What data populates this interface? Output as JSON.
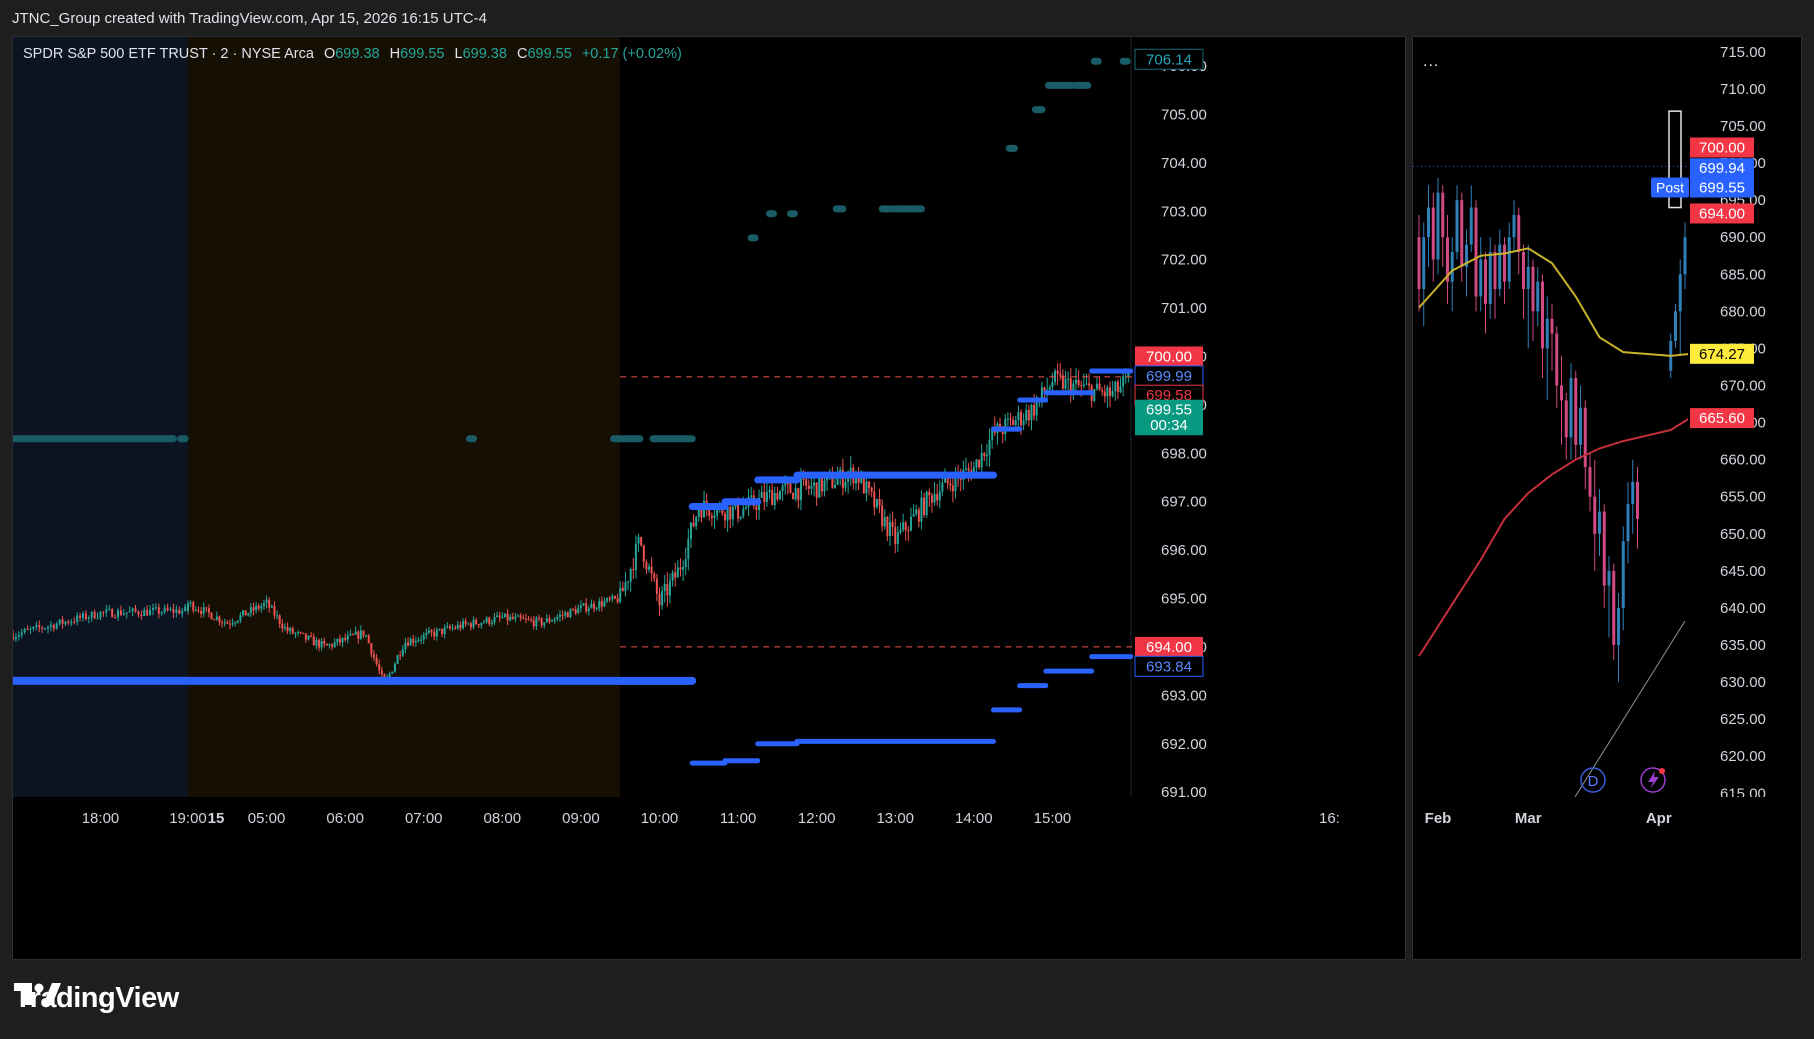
{
  "header": {
    "text": "JTNC_Group created with TradingView.com, Apr 15, 2026 16:15 UTC-4"
  },
  "brand": {
    "name": "TradingView"
  },
  "legend": {
    "symbol": "SPDR S&P 500 ETF TRUST · 2 · NYSE Arca",
    "o_label": "O",
    "o": "699.38",
    "h_label": "H",
    "h": "699.55",
    "l_label": "L",
    "l": "699.38",
    "c_label": "C",
    "c": "699.55",
    "change": "+0.17 (+0.02%)"
  },
  "right_panel": {
    "menu": "...",
    "badge": "Post",
    "icon_d": "D"
  },
  "colors": {
    "background": "#000000",
    "page": "#1e1e1e",
    "up": "#26a69a",
    "down": "#ef5350",
    "blue_level": "#2962ff",
    "teal_level": "#1a5c66",
    "ma_yellow": "#c8b22a",
    "ma_red": "#c62f3a"
  },
  "chart_data": [
    {
      "type": "candlestick",
      "title": "SPDR S&P 500 ETF TRUST · 2 · NYSE Arca",
      "interval": "2 minute",
      "x_ticks": [
        "18:00",
        "19:00",
        "15",
        "05:00",
        "06:00",
        "07:00",
        "08:00",
        "09:00",
        "10:00",
        "11:00",
        "12:00",
        "13:00",
        "14:00",
        "15:00",
        "16:"
      ],
      "y_ticks": [
        "691.00",
        "692.00",
        "693.00",
        "694.00",
        "695.00",
        "696.00",
        "697.00",
        "698.00",
        "699.00",
        "700.00",
        "701.00",
        "702.00",
        "703.00",
        "704.00",
        "705.00",
        "706.00"
      ],
      "ylim": [
        690.9,
        706.6
      ],
      "sessions": [
        {
          "name": "overnight",
          "from": "17:00",
          "to": "04:00",
          "color": "#0b1420"
        },
        {
          "name": "pre-market",
          "from": "04:00",
          "to": "09:30",
          "color": "#160f04"
        },
        {
          "name": "regular",
          "from": "09:30",
          "to": "16:00",
          "color": "#000000"
        }
      ],
      "close_path": [
        {
          "t": "17:00",
          "p": 694.25
        },
        {
          "t": "18:00",
          "p": 694.7
        },
        {
          "t": "19:00",
          "p": 694.75
        },
        {
          "t": "04:00",
          "p": 694.9
        },
        {
          "t": "04:30",
          "p": 694.5
        },
        {
          "t": "05:00",
          "p": 694.9
        },
        {
          "t": "05:15",
          "p": 694.35
        },
        {
          "t": "05:45",
          "p": 694.0
        },
        {
          "t": "06:15",
          "p": 694.3
        },
        {
          "t": "06:30",
          "p": 693.2
        },
        {
          "t": "06:45",
          "p": 694.1
        },
        {
          "t": "07:30",
          "p": 694.45
        },
        {
          "t": "08:00",
          "p": 694.6
        },
        {
          "t": "08:30",
          "p": 694.5
        },
        {
          "t": "09:00",
          "p": 694.8
        },
        {
          "t": "09:30",
          "p": 695.0
        },
        {
          "t": "09:45",
          "p": 696.2
        },
        {
          "t": "10:00",
          "p": 694.9
        },
        {
          "t": "10:15",
          "p": 695.6
        },
        {
          "t": "10:30",
          "p": 696.9
        },
        {
          "t": "11:00",
          "p": 696.8
        },
        {
          "t": "11:30",
          "p": 697.2
        },
        {
          "t": "12:00",
          "p": 697.3
        },
        {
          "t": "12:30",
          "p": 697.6
        },
        {
          "t": "13:00",
          "p": 696.2
        },
        {
          "t": "13:30",
          "p": 697.2
        },
        {
          "t": "14:00",
          "p": 697.7
        },
        {
          "t": "14:15",
          "p": 698.4
        },
        {
          "t": "14:45",
          "p": 698.9
        },
        {
          "t": "15:00",
          "p": 699.5
        },
        {
          "t": "15:30",
          "p": 699.3
        },
        {
          "t": "15:45",
          "p": 699.2
        },
        {
          "t": "16:00",
          "p": 699.55
        }
      ],
      "blue_levels": [
        {
          "from": "17:00",
          "to": "10:25",
          "p": 693.3
        },
        {
          "from": "10:25",
          "to": "10:50",
          "p": 691.6
        },
        {
          "from": "10:50",
          "to": "11:15",
          "p": 691.65
        },
        {
          "from": "11:15",
          "to": "11:45",
          "p": 692.0
        },
        {
          "from": "11:45",
          "to": "14:15",
          "p": 692.05
        },
        {
          "from": "14:15",
          "to": "14:35",
          "p": 692.7
        },
        {
          "from": "14:35",
          "to": "14:55",
          "p": 693.2
        },
        {
          "from": "14:55",
          "to": "15:30",
          "p": 693.5
        },
        {
          "from": "15:30",
          "to": "16:00",
          "p": 693.8
        },
        {
          "from": "10:25",
          "to": "10:50",
          "p": 696.9
        },
        {
          "from": "10:50",
          "to": "11:15",
          "p": 697.0
        },
        {
          "from": "11:15",
          "to": "11:45",
          "p": 697.45
        },
        {
          "from": "11:45",
          "to": "14:15",
          "p": 697.55
        },
        {
          "from": "14:15",
          "to": "14:35",
          "p": 698.5
        },
        {
          "from": "14:35",
          "to": "14:55",
          "p": 699.1
        },
        {
          "from": "14:55",
          "to": "15:30",
          "p": 699.25
        },
        {
          "from": "15:30",
          "to": "16:00",
          "p": 699.7
        }
      ],
      "teal_levels": [
        {
          "from": "17:00",
          "to": "18:50",
          "p": 698.3
        },
        {
          "from": "18:55",
          "to": "18:58",
          "p": 698.3
        },
        {
          "from": "07:35",
          "to": "07:38",
          "p": 698.3
        },
        {
          "from": "09:25",
          "to": "09:45",
          "p": 698.3
        },
        {
          "from": "09:55",
          "to": "10:25",
          "p": 698.3
        },
        {
          "from": "11:10",
          "to": "11:13",
          "p": 702.45
        },
        {
          "from": "11:24",
          "to": "11:27",
          "p": 702.95
        },
        {
          "from": "11:40",
          "to": "11:43",
          "p": 702.95
        },
        {
          "from": "12:15",
          "to": "12:20",
          "p": 703.05
        },
        {
          "from": "12:50",
          "to": "12:55",
          "p": 703.05
        },
        {
          "from": "12:58",
          "to": "13:10",
          "p": 703.05
        },
        {
          "from": "13:11",
          "to": "13:20",
          "p": 703.05
        },
        {
          "from": "14:27",
          "to": "14:31",
          "p": 704.3
        },
        {
          "from": "14:47",
          "to": "14:52",
          "p": 705.1
        },
        {
          "from": "14:57",
          "to": "15:15",
          "p": 705.6
        },
        {
          "from": "15:18",
          "to": "15:27",
          "p": 705.6
        },
        {
          "from": "15:32",
          "to": "15:35",
          "p": 706.1
        },
        {
          "from": "15:54",
          "to": "15:57",
          "p": 706.1
        }
      ],
      "dashed_lines": [
        {
          "p": 699.58,
          "color": "#ef5350"
        },
        {
          "p": 694.0,
          "color": "#ef5350"
        }
      ],
      "price_labels": [
        {
          "text": "706.14",
          "p": 706.14,
          "style": "outline-teal"
        },
        {
          "text": "700.00",
          "p": 700.0,
          "style": "fill-red"
        },
        {
          "text": "699.99",
          "p": 699.6,
          "style": "outline-blue"
        },
        {
          "text": "699.58",
          "p": 699.2,
          "style": "outline-red"
        },
        {
          "text": "699.55",
          "p": 698.9,
          "style": "fill-green"
        },
        {
          "text": "00:34",
          "p": 698.58,
          "style": "fill-green"
        },
        {
          "text": "694.00",
          "p": 694.0,
          "style": "fill-red"
        },
        {
          "text": "693.84",
          "p": 693.6,
          "style": "outline-blue"
        }
      ]
    },
    {
      "type": "candlestick",
      "interval": "1 day",
      "x_ticks": [
        "Feb",
        "Mar",
        "Apr"
      ],
      "y_ticks": [
        "615.00",
        "620.00",
        "625.00",
        "630.00",
        "635.00",
        "640.00",
        "645.00",
        "650.00",
        "655.00",
        "660.00",
        "665.00",
        "670.00",
        "675.00",
        "680.00",
        "685.00",
        "690.00",
        "695.00",
        "700.00",
        "705.00",
        "710.00",
        "715.00"
      ],
      "ylim": [
        614.5,
        717
      ],
      "daily": [
        {
          "d": "Jan 27",
          "o": 690,
          "h": 693,
          "l": 680,
          "c": 683
        },
        {
          "d": "Jan 28",
          "o": 683,
          "h": 692,
          "l": 678,
          "c": 690
        },
        {
          "d": "Jan 29",
          "o": 690,
          "h": 697,
          "l": 686,
          "c": 694
        },
        {
          "d": "Jan 30",
          "o": 694,
          "h": 696,
          "l": 684,
          "c": 687
        },
        {
          "d": "Feb 02",
          "o": 687,
          "h": 698,
          "l": 685,
          "c": 696
        },
        {
          "d": "Feb 03",
          "o": 696,
          "h": 697,
          "l": 686,
          "c": 690
        },
        {
          "d": "Feb 04",
          "o": 690,
          "h": 693,
          "l": 681,
          "c": 684
        },
        {
          "d": "Feb 05",
          "o": 684,
          "h": 690,
          "l": 680,
          "c": 688
        },
        {
          "d": "Feb 06",
          "o": 688,
          "h": 697,
          "l": 687,
          "c": 695
        },
        {
          "d": "Feb 09",
          "o": 695,
          "h": 696,
          "l": 684,
          "c": 686
        },
        {
          "d": "Feb 10",
          "o": 686,
          "h": 691,
          "l": 682,
          "c": 689
        },
        {
          "d": "Feb 11",
          "o": 689,
          "h": 697,
          "l": 688,
          "c": 694
        },
        {
          "d": "Feb 12",
          "o": 694,
          "h": 695,
          "l": 680,
          "c": 682
        },
        {
          "d": "Feb 13",
          "o": 682,
          "h": 690,
          "l": 680,
          "c": 687
        },
        {
          "d": "Feb 17",
          "o": 687,
          "h": 688,
          "l": 677,
          "c": 681
        },
        {
          "d": "Feb 18",
          "o": 681,
          "h": 690,
          "l": 679,
          "c": 688
        },
        {
          "d": "Feb 19",
          "o": 688,
          "h": 689,
          "l": 679,
          "c": 683
        },
        {
          "d": "Feb 20",
          "o": 683,
          "h": 691,
          "l": 682,
          "c": 689
        },
        {
          "d": "Feb 23",
          "o": 689,
          "h": 690,
          "l": 681,
          "c": 684
        },
        {
          "d": "Feb 24",
          "o": 684,
          "h": 692,
          "l": 683,
          "c": 690
        },
        {
          "d": "Feb 25",
          "o": 690,
          "h": 695,
          "l": 688,
          "c": 693
        },
        {
          "d": "Feb 26",
          "o": 693,
          "h": 694,
          "l": 685,
          "c": 688
        },
        {
          "d": "Feb 27",
          "o": 688,
          "h": 689,
          "l": 679,
          "c": 683
        },
        {
          "d": "Mar 02",
          "o": 683,
          "h": 689,
          "l": 675,
          "c": 686
        },
        {
          "d": "Mar 03",
          "o": 686,
          "h": 687,
          "l": 676,
          "c": 680
        },
        {
          "d": "Mar 04",
          "o": 680,
          "h": 686,
          "l": 678,
          "c": 684
        },
        {
          "d": "Mar 05",
          "o": 684,
          "h": 685,
          "l": 671,
          "c": 675
        },
        {
          "d": "Mar 06",
          "o": 675,
          "h": 682,
          "l": 668,
          "c": 679
        },
        {
          "d": "Mar 09",
          "o": 679,
          "h": 681,
          "l": 672,
          "c": 677
        },
        {
          "d": "Mar 10",
          "o": 677,
          "h": 678,
          "l": 667,
          "c": 670
        },
        {
          "d": "Mar 11",
          "o": 670,
          "h": 674,
          "l": 662,
          "c": 668
        },
        {
          "d": "Mar 12",
          "o": 668,
          "h": 669,
          "l": 660,
          "c": 663
        },
        {
          "d": "Mar 13",
          "o": 663,
          "h": 673,
          "l": 660,
          "c": 671
        },
        {
          "d": "Mar 16",
          "o": 671,
          "h": 672,
          "l": 660,
          "c": 662
        },
        {
          "d": "Mar 17",
          "o": 662,
          "h": 670,
          "l": 660,
          "c": 667
        },
        {
          "d": "Mar 18",
          "o": 667,
          "h": 668,
          "l": 656,
          "c": 659
        },
        {
          "d": "Mar 19",
          "o": 659,
          "h": 661,
          "l": 653,
          "c": 655
        },
        {
          "d": "Mar 20",
          "o": 655,
          "h": 660,
          "l": 645,
          "c": 650
        },
        {
          "d": "Mar 23",
          "o": 650,
          "h": 656,
          "l": 647,
          "c": 653
        },
        {
          "d": "Mar 24",
          "o": 653,
          "h": 654,
          "l": 640,
          "c": 643
        },
        {
          "d": "Mar 25",
          "o": 643,
          "h": 647,
          "l": 636,
          "c": 645
        },
        {
          "d": "Mar 26",
          "o": 645,
          "h": 646,
          "l": 633,
          "c": 635
        },
        {
          "d": "Mar 27",
          "o": 635,
          "h": 642,
          "l": 630,
          "c": 640
        },
        {
          "d": "Mar 30",
          "o": 640,
          "h": 651,
          "l": 637,
          "c": 649
        },
        {
          "d": "Mar 31",
          "o": 649,
          "h": 657,
          "l": 646,
          "c": 654
        },
        {
          "d": "Apr 01",
          "o": 654,
          "h": 660,
          "l": 650,
          "c": 657
        },
        {
          "d": "Apr 02",
          "o": 657,
          "h": 659,
          "l": 648,
          "c": 652
        }
      ],
      "daily_gap_after": "Apr 02",
      "daily_recent": [
        {
          "d": "Apr 06",
          "o": 672,
          "h": 677,
          "l": 671,
          "c": 676
        },
        {
          "d": "Apr 07",
          "o": 676,
          "h": 681,
          "l": 675,
          "c": 680
        },
        {
          "d": "Apr 08",
          "o": 680,
          "h": 687,
          "l": 674,
          "c": 685
        },
        {
          "d": "Apr 09",
          "o": 685,
          "h": 692,
          "l": 683,
          "c": 690
        },
        {
          "d": "Apr 10",
          "o": 690,
          "h": 693,
          "l": 687,
          "c": 692
        },
        {
          "d": "Apr 13",
          "o": 692,
          "h": 697,
          "l": 691,
          "c": 696
        },
        {
          "d": "Apr 14",
          "o": 696,
          "h": 699,
          "l": 695,
          "c": 698
        },
        {
          "d": "Apr 15",
          "o": 698,
          "h": 700,
          "l": 697,
          "c": 699.55
        }
      ],
      "moving_averages": [
        {
          "color": "#c8b22a",
          "last": "674.27",
          "points": [
            {
              "d": "Jan 27",
              "v": 680.5
            },
            {
              "d": "Feb 05",
              "v": 685.5
            },
            {
              "d": "Feb 13",
              "v": 687.5
            },
            {
              "d": "Feb 23",
              "v": 687.8
            },
            {
              "d": "Mar 02",
              "v": 688.5
            },
            {
              "d": "Mar 09",
              "v": 686.5
            },
            {
              "d": "Mar 16",
              "v": 682.0
            },
            {
              "d": "Mar 23",
              "v": 676.5
            },
            {
              "d": "Mar 30",
              "v": 674.5
            },
            {
              "d": "Apr 06",
              "v": 674.0
            },
            {
              "d": "Apr 10",
              "v": 674.27
            }
          ]
        },
        {
          "color": "#c62f3a",
          "last": "665.60",
          "points": [
            {
              "d": "Jan 27",
              "v": 633.5
            },
            {
              "d": "Feb 05",
              "v": 640.5
            },
            {
              "d": "Feb 13",
              "v": 646.5
            },
            {
              "d": "Feb 23",
              "v": 652.0
            },
            {
              "d": "Mar 02",
              "v": 655.5
            },
            {
              "d": "Mar 09",
              "v": 658.0
            },
            {
              "d": "Mar 16",
              "v": 660.0
            },
            {
              "d": "Mar 23",
              "v": 661.5
            },
            {
              "d": "Mar 30",
              "v": 662.5
            },
            {
              "d": "Apr 06",
              "v": 664.0
            },
            {
              "d": "Apr 10",
              "v": 665.6
            }
          ]
        }
      ],
      "price_labels": [
        {
          "text": "700.00",
          "p": 702.1,
          "style": "fill-red"
        },
        {
          "text": "699.94",
          "p": 699.3,
          "style": "fill-blue"
        },
        {
          "text": "699.55",
          "p": 696.7,
          "style": "fill-blue"
        },
        {
          "text": "694.00",
          "p": 693.2,
          "style": "fill-red"
        },
        {
          "text": "674.27",
          "p": 674.27,
          "style": "fill-yellow"
        },
        {
          "text": "665.60",
          "p": 665.6,
          "style": "fill-red"
        }
      ]
    }
  ]
}
